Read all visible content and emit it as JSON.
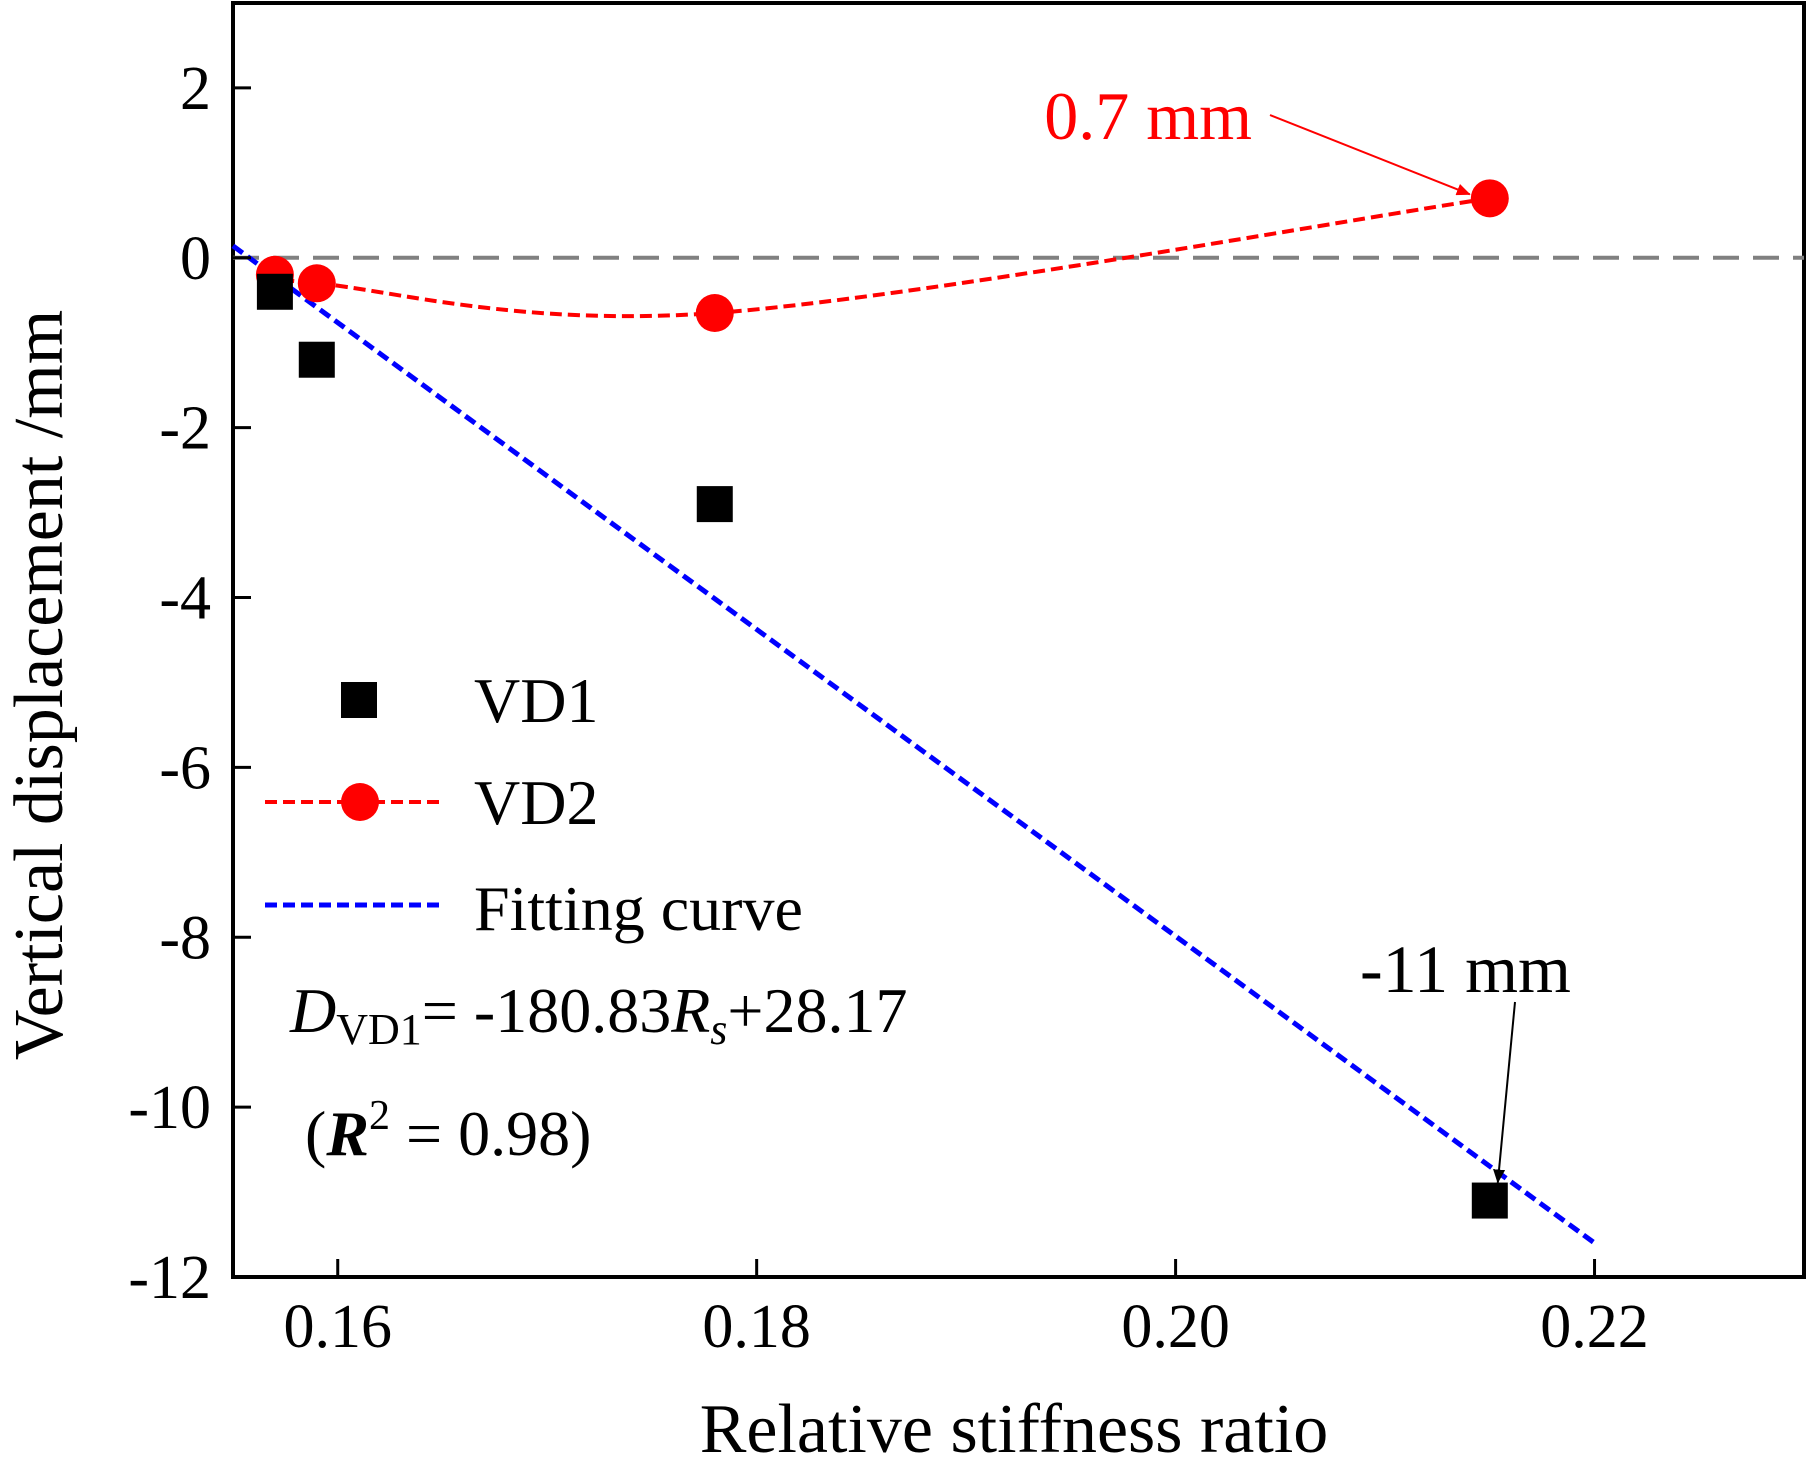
{
  "chart_data": {
    "type": "scatter",
    "xlabel": "Relative stiffness ratio",
    "ylabel": "Vertical displacement /mm",
    "xlim": [
      0.155,
      0.23
    ],
    "ylim": [
      -12,
      3
    ],
    "x_ticks": [
      "0.16",
      "0.18",
      "0.20",
      "0.22"
    ],
    "y_ticks": [
      "2",
      "0",
      "-2",
      "-4",
      "-6",
      "-8",
      "-10",
      "-12"
    ],
    "reference_line": {
      "y": 0,
      "style": "dashed",
      "color": "#808080"
    },
    "series": [
      {
        "name": "VD1",
        "marker": "square",
        "color": "#000000",
        "points": [
          [
            0.157,
            -0.4
          ],
          [
            0.159,
            -1.2
          ],
          [
            0.178,
            -2.9
          ],
          [
            0.215,
            -11.1
          ]
        ]
      },
      {
        "name": "VD2",
        "marker": "circle",
        "line": "dashed",
        "color": "#ff0000",
        "points": [
          [
            0.157,
            -0.2
          ],
          [
            0.159,
            -0.3
          ],
          [
            0.178,
            -0.65
          ],
          [
            0.215,
            0.7
          ]
        ]
      },
      {
        "name": "Fitting curve",
        "line": "dashed",
        "color": "#0000ff",
        "points": [
          [
            0.155,
            0.14
          ],
          [
            0.22,
            -11.6
          ]
        ]
      }
    ],
    "annotations": [
      {
        "text": "0.7 mm",
        "color": "#ff0000",
        "points_to": [
          0.215,
          0.7
        ]
      },
      {
        "text": "-11 mm",
        "color": "#000000",
        "points_to": [
          0.215,
          -11.1
        ]
      }
    ],
    "equation": {
      "D": "D",
      "sub": "VD1",
      "mid": "= -180.83",
      "R": "R",
      "Rsub": "s",
      "end": "+28.17"
    },
    "r2": {
      "open": "(",
      "R": "R",
      "sup": "2",
      "rest": " = 0.98)"
    },
    "legend": {
      "position": "bottom-left"
    }
  }
}
